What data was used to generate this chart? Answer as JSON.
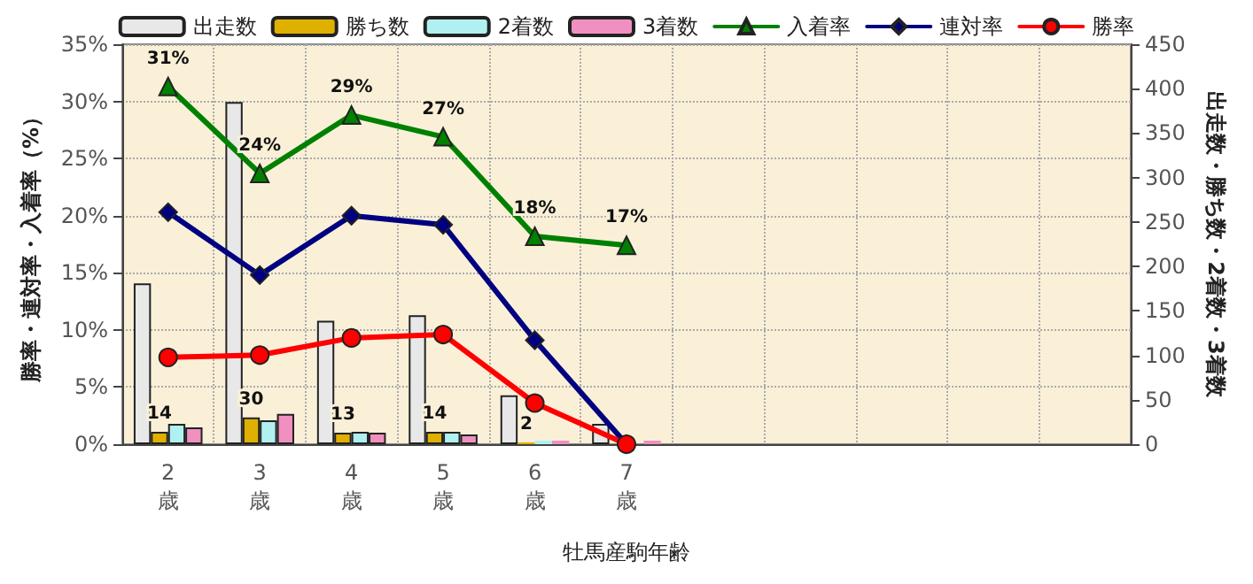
{
  "chart_data": {
    "type": "bar",
    "xlabel": "牡馬産駒年齢",
    "ylabel": "勝率・連対率・入着率（%）",
    "y2label": "出走数・勝ち数・2着数・3着数",
    "categories": [
      "2歳",
      "3歳",
      "4歳",
      "5歳",
      "6歳",
      "7歳",
      null,
      null,
      null,
      null,
      null
    ],
    "series": [
      {
        "name": "出走数",
        "axis": "y2",
        "color": "#e8e8e8",
        "values": [
          181,
          385,
          139,
          145,
          55,
          23,
          null,
          null,
          null,
          null,
          null
        ]
      },
      {
        "name": "勝ち数",
        "axis": "y2",
        "color": "#e0b000",
        "values": [
          14,
          30,
          13,
          14,
          2,
          0,
          null,
          null,
          null,
          null,
          null
        ],
        "value_labels": [
          "14",
          "30",
          "13",
          "14",
          "2",
          null,
          null,
          null,
          null,
          null,
          null
        ]
      },
      {
        "name": "2着数",
        "axis": "y2",
        "color": "#b0f0f0",
        "values": [
          23,
          27,
          14,
          14,
          4,
          0,
          null,
          null,
          null,
          null,
          null
        ]
      },
      {
        "name": "3着数",
        "axis": "y2",
        "color": "#f090c0",
        "values": [
          19,
          34,
          13,
          11,
          4,
          4,
          null,
          null,
          null,
          null,
          null
        ]
      },
      {
        "name": "入着率",
        "type": "line",
        "color": "#008000",
        "marker": "triangle",
        "values": [
          31.3,
          23.7,
          28.8,
          26.9,
          18.2,
          17.4,
          null,
          null,
          null,
          null,
          null
        ],
        "value_labels": [
          "31%",
          "24%",
          "29%",
          "27%",
          "18%",
          "17%",
          null,
          null,
          null,
          null,
          null
        ]
      },
      {
        "name": "連対率",
        "type": "line",
        "color": "#000080",
        "marker": "diamond",
        "values": [
          20.3,
          14.8,
          20.0,
          19.2,
          9.1,
          0,
          null,
          null,
          null,
          null,
          null
        ]
      },
      {
        "name": "勝率",
        "type": "line",
        "color": "#ff0000",
        "marker": "circle",
        "values": [
          7.6,
          7.8,
          9.3,
          9.6,
          3.6,
          0,
          null,
          null,
          null,
          null,
          null
        ]
      }
    ],
    "ylim": [
      0,
      35
    ],
    "yticks": [
      {
        "value": 0,
        "label": "0%"
      },
      {
        "value": 5,
        "label": "5%"
      },
      {
        "value": 10,
        "label": "10%"
      },
      {
        "value": 15,
        "label": "15%"
      },
      {
        "value": 20,
        "label": "20%"
      },
      {
        "value": 25,
        "label": "25%"
      },
      {
        "value": 30,
        "label": "30%"
      },
      {
        "value": 35,
        "label": "35%"
      }
    ],
    "y2lim": [
      0,
      450
    ],
    "y2ticks": [
      0,
      50,
      100,
      150,
      200,
      250,
      300,
      350,
      400,
      450
    ],
    "grid": true,
    "legend": "top"
  }
}
